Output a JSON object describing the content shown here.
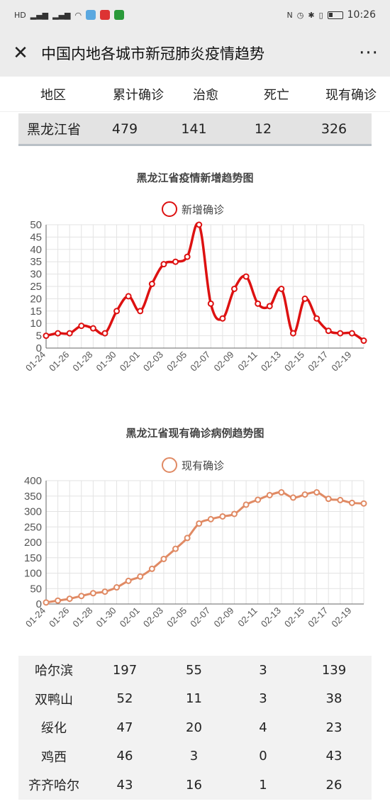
{
  "status_bar": {
    "time": "10:26"
  },
  "title_bar": {
    "title": "中国内地各城市新冠肺炎疫情趋势",
    "close_glyph": "✕",
    "more_glyph": "···"
  },
  "table_header": [
    "地区",
    "累计确诊",
    "治愈",
    "死亡",
    "现有确诊"
  ],
  "province_row": {
    "region": "黑龙江省",
    "confirmed": "479",
    "cured": "141",
    "deaths": "12",
    "current": "326"
  },
  "chart_data": [
    {
      "type": "line",
      "title": "黑龙江省疫情新增趋势图",
      "legend": "新增确诊",
      "color": "#dd1111",
      "x": [
        "01-24",
        "01-25",
        "01-26",
        "01-27",
        "01-28",
        "01-29",
        "01-30",
        "01-31",
        "02-01",
        "02-02",
        "02-03",
        "02-04",
        "02-05",
        "02-06",
        "02-07",
        "02-08",
        "02-09",
        "02-10",
        "02-11",
        "02-12",
        "02-13",
        "02-14",
        "02-15",
        "02-16",
        "02-17",
        "02-18",
        "02-19",
        "02-20"
      ],
      "x_tick_labels": [
        "01-24",
        "01-26",
        "01-28",
        "01-30",
        "02-01",
        "02-03",
        "02-05",
        "02-07",
        "02-09",
        "02-11",
        "02-13",
        "02-15",
        "02-17",
        "02-19"
      ],
      "values": [
        5,
        6,
        6,
        9,
        8,
        6,
        15,
        21,
        15,
        26,
        34,
        35,
        37,
        50,
        18,
        12,
        24,
        29,
        18,
        17,
        24,
        6,
        20,
        12,
        7,
        6,
        6,
        3
      ],
      "ylim": [
        0,
        50
      ],
      "yticks": [
        0,
        5,
        10,
        15,
        20,
        25,
        30,
        35,
        40,
        45,
        50
      ],
      "grid": true
    },
    {
      "type": "line",
      "title": "黑龙江省现有确诊病例趋势图",
      "legend": "现有确诊",
      "color": "#e08a64",
      "x": [
        "01-24",
        "01-25",
        "01-26",
        "01-27",
        "01-28",
        "01-29",
        "01-30",
        "01-31",
        "02-01",
        "02-02",
        "02-03",
        "02-04",
        "02-05",
        "02-06",
        "02-07",
        "02-08",
        "02-09",
        "02-10",
        "02-11",
        "02-12",
        "02-13",
        "02-14",
        "02-15",
        "02-16",
        "02-17",
        "02-18",
        "02-19",
        "02-20"
      ],
      "x_tick_labels": [
        "01-24",
        "01-26",
        "01-28",
        "01-30",
        "02-01",
        "02-03",
        "02-05",
        "02-07",
        "02-09",
        "02-11",
        "02-13",
        "02-15",
        "02-17",
        "02-19"
      ],
      "values": [
        5,
        11,
        17,
        26,
        35,
        40,
        54,
        75,
        89,
        114,
        146,
        179,
        214,
        261,
        275,
        284,
        292,
        322,
        338,
        353,
        362,
        345,
        355,
        362,
        341,
        337,
        328,
        326
      ],
      "ylim": [
        0,
        400
      ],
      "yticks": [
        0,
        50,
        100,
        150,
        200,
        250,
        300,
        350,
        400
      ],
      "grid": true
    }
  ],
  "city_rows": [
    {
      "region": "哈尔滨",
      "confirmed": "197",
      "cured": "55",
      "deaths": "3",
      "current": "139"
    },
    {
      "region": "双鸭山",
      "confirmed": "52",
      "cured": "11",
      "deaths": "3",
      "current": "38"
    },
    {
      "region": "绥化",
      "confirmed": "47",
      "cured": "20",
      "deaths": "4",
      "current": "23"
    },
    {
      "region": "鸡西",
      "confirmed": "46",
      "cured": "3",
      "deaths": "0",
      "current": "43"
    },
    {
      "region": "齐齐哈尔",
      "confirmed": "43",
      "cured": "16",
      "deaths": "1",
      "current": "26"
    }
  ]
}
